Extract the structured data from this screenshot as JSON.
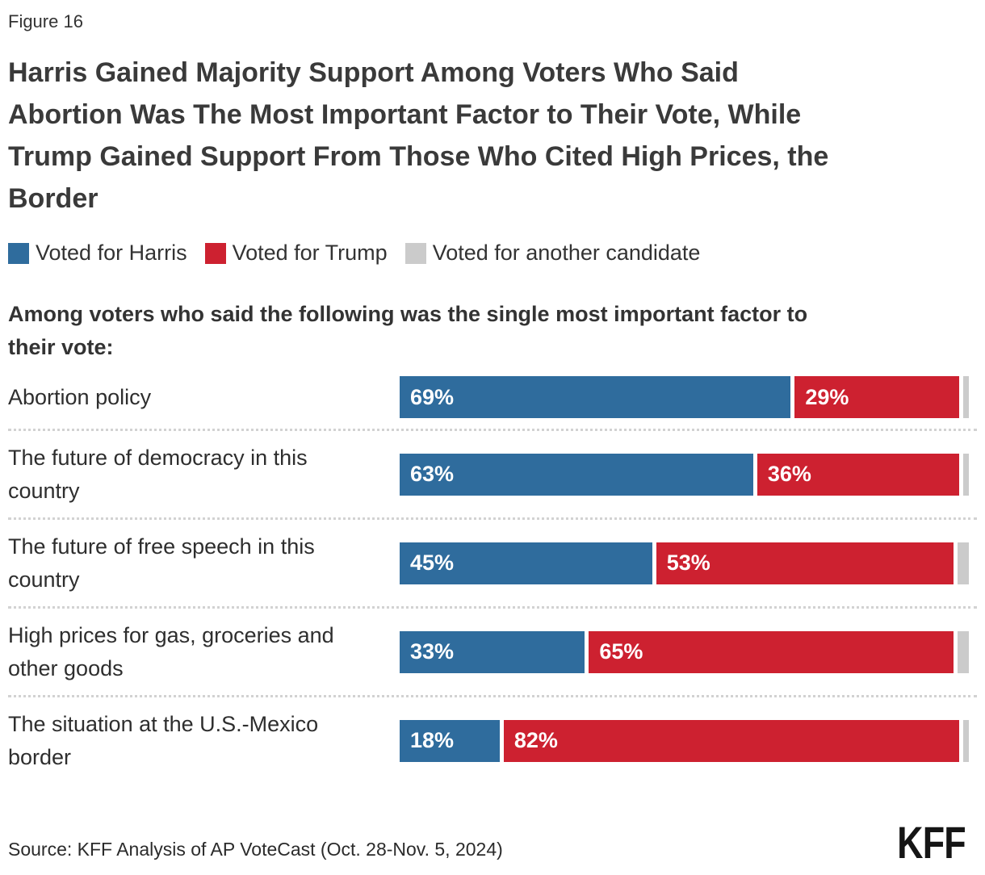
{
  "figure_label": "Figure 16",
  "header": {
    "title_lines": [
      "Harris Gained Majority Support Among Voters Who Said",
      "Abortion Was The Most Important Factor to Their Vote, While",
      "Trump Gained Support From Those Who Cited High Prices, the",
      "Border"
    ],
    "subtitle_lines": [
      "Among voters who said the following was the single most important factor to",
      "their vote:"
    ]
  },
  "legend": {
    "items": [
      {
        "label": "Voted for Harris",
        "color": "#2f6c9d"
      },
      {
        "label": "Voted for Trump",
        "color": "#cd2130"
      },
      {
        "label": "Voted for another candidate",
        "color": "#cbcbcb"
      }
    ]
  },
  "chart_data": {
    "type": "bar",
    "stacked": true,
    "orientation": "horizontal",
    "title": "Harris Gained Majority Support Among Voters Who Said Abortion Was The Most Important Factor to Their Vote, While Trump Gained Support From Those Who Cited High Prices, the Border",
    "subtitle": "Among voters who said the following was the single most important factor to their vote:",
    "categories": [
      "Abortion policy",
      "The future of democracy in this country",
      "The future of free speech in this country",
      "High prices for gas, groceries and other goods",
      "The situation at the U.S.-Mexico border"
    ],
    "series": [
      {
        "name": "Voted for Harris",
        "color": "#2f6c9d",
        "values": [
          69,
          63,
          45,
          33,
          18
        ],
        "labels": [
          "69%",
          "63%",
          "45%",
          "33%",
          "18%"
        ]
      },
      {
        "name": "Voted for Trump",
        "color": "#cd2130",
        "values": [
          29,
          36,
          53,
          65,
          82
        ],
        "labels": [
          "29%",
          "36%",
          "53%",
          "65%",
          "82%"
        ]
      },
      {
        "name": "Voted for another candidate",
        "color": "#cbcbcb",
        "values": [
          1,
          1,
          2,
          2,
          1
        ],
        "labels": [
          "",
          "",
          "",
          "",
          ""
        ]
      }
    ],
    "value_suffix": "%",
    "xlim": [
      0,
      100
    ],
    "legend_position": "top",
    "grid": false,
    "bar_value_labels": "inside-left, white, Harris and Trump segments only"
  },
  "footer": {
    "source": "Source: KFF Analysis of AP VoteCast (Oct. 28-Nov. 5, 2024)",
    "logo_text": "KFF"
  }
}
